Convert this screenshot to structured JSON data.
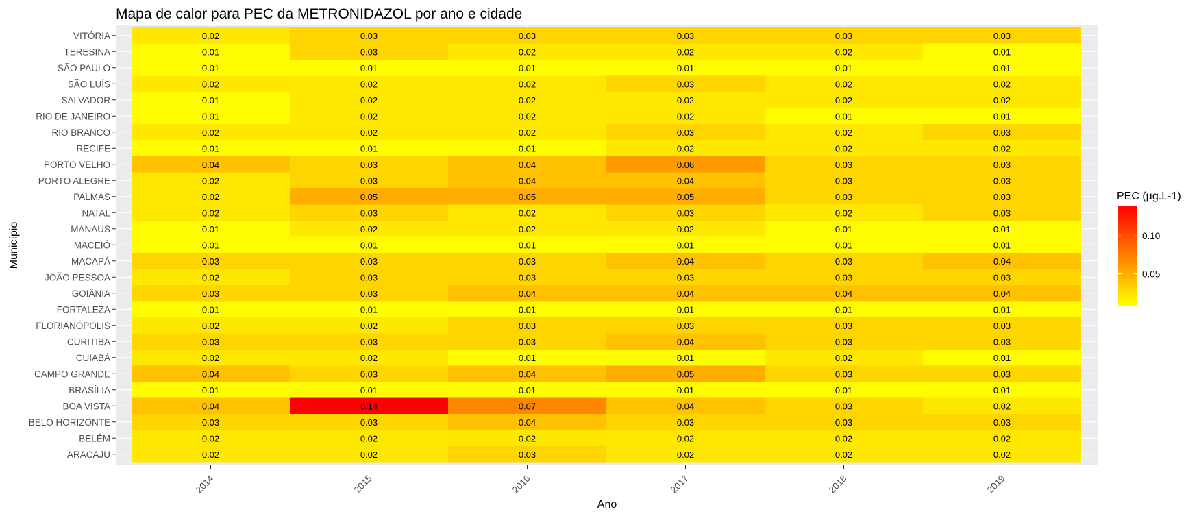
{
  "chart_data": {
    "type": "heatmap",
    "title": "Mapa de calor para PEC da METRONIDAZOL por ano e cidade",
    "xlabel": "Ano",
    "ylabel": "Município",
    "x": [
      "2014",
      "2015",
      "2016",
      "2017",
      "2018",
      "2019"
    ],
    "y": [
      "ARACAJU",
      "BELÉM",
      "BELO HORIZONTE",
      "BOA VISTA",
      "BRASÍLIA",
      "CAMPO GRANDE",
      "CUIABÁ",
      "CURITIBA",
      "FLORIANÓPOLIS",
      "FORTALEZA",
      "GOIÂNIA",
      "JOÃO PESSOA",
      "MACAPÁ",
      "MACEIÓ",
      "MANAUS",
      "NATAL",
      "PALMAS",
      "PORTO ALEGRE",
      "PORTO VELHO",
      "RECIFE",
      "RIO BRANCO",
      "RIO DE JANEIRO",
      "SALVADOR",
      "SÃO LUÍS",
      "SÃO PAULO",
      "TERESINA",
      "VITÓRIA"
    ],
    "values": [
      [
        0.02,
        0.02,
        0.03,
        0.02,
        0.02,
        0.02
      ],
      [
        0.02,
        0.02,
        0.02,
        0.02,
        0.02,
        0.02
      ],
      [
        0.03,
        0.03,
        0.04,
        0.03,
        0.03,
        0.03
      ],
      [
        0.04,
        0.14,
        0.07,
        0.04,
        0.03,
        0.02
      ],
      [
        0.01,
        0.01,
        0.01,
        0.01,
        0.01,
        0.01
      ],
      [
        0.04,
        0.03,
        0.04,
        0.05,
        0.03,
        0.03
      ],
      [
        0.02,
        0.02,
        0.01,
        0.01,
        0.02,
        0.01
      ],
      [
        0.03,
        0.03,
        0.03,
        0.04,
        0.03,
        0.03
      ],
      [
        0.02,
        0.02,
        0.03,
        0.03,
        0.03,
        0.03
      ],
      [
        0.01,
        0.01,
        0.01,
        0.01,
        0.01,
        0.01
      ],
      [
        0.03,
        0.03,
        0.04,
        0.04,
        0.04,
        0.04
      ],
      [
        0.02,
        0.03,
        0.03,
        0.03,
        0.03,
        0.03
      ],
      [
        0.03,
        0.03,
        0.03,
        0.04,
        0.03,
        0.04
      ],
      [
        0.01,
        0.01,
        0.01,
        0.01,
        0.01,
        0.01
      ],
      [
        0.01,
        0.02,
        0.02,
        0.02,
        0.01,
        0.01
      ],
      [
        0.02,
        0.03,
        0.02,
        0.03,
        0.02,
        0.03
      ],
      [
        0.02,
        0.05,
        0.05,
        0.05,
        0.03,
        0.03
      ],
      [
        0.02,
        0.03,
        0.04,
        0.04,
        0.03,
        0.03
      ],
      [
        0.04,
        0.03,
        0.04,
        0.06,
        0.03,
        0.03
      ],
      [
        0.01,
        0.01,
        0.01,
        0.02,
        0.02,
        0.02
      ],
      [
        0.02,
        0.02,
        0.02,
        0.03,
        0.02,
        0.03
      ],
      [
        0.01,
        0.02,
        0.02,
        0.02,
        0.01,
        0.01
      ],
      [
        0.01,
        0.02,
        0.02,
        0.02,
        0.02,
        0.02
      ],
      [
        0.02,
        0.02,
        0.02,
        0.03,
        0.02,
        0.02
      ],
      [
        0.01,
        0.01,
        0.01,
        0.01,
        0.01,
        0.01
      ],
      [
        0.01,
        0.03,
        0.02,
        0.02,
        0.02,
        0.01
      ],
      [
        0.02,
        0.03,
        0.03,
        0.03,
        0.03,
        0.03
      ]
    ],
    "legend": {
      "title": "PEC (µg.L-1)",
      "ticks": [
        0.05,
        0.1
      ],
      "tick_labels": [
        "0.05",
        "0.10"
      ],
      "range": [
        0.008,
        0.14
      ],
      "low_color": "#FFFF00",
      "high_color": "#FF0000",
      "placement": "right"
    },
    "panel_background": "#EBEBEB",
    "grid": true
  }
}
